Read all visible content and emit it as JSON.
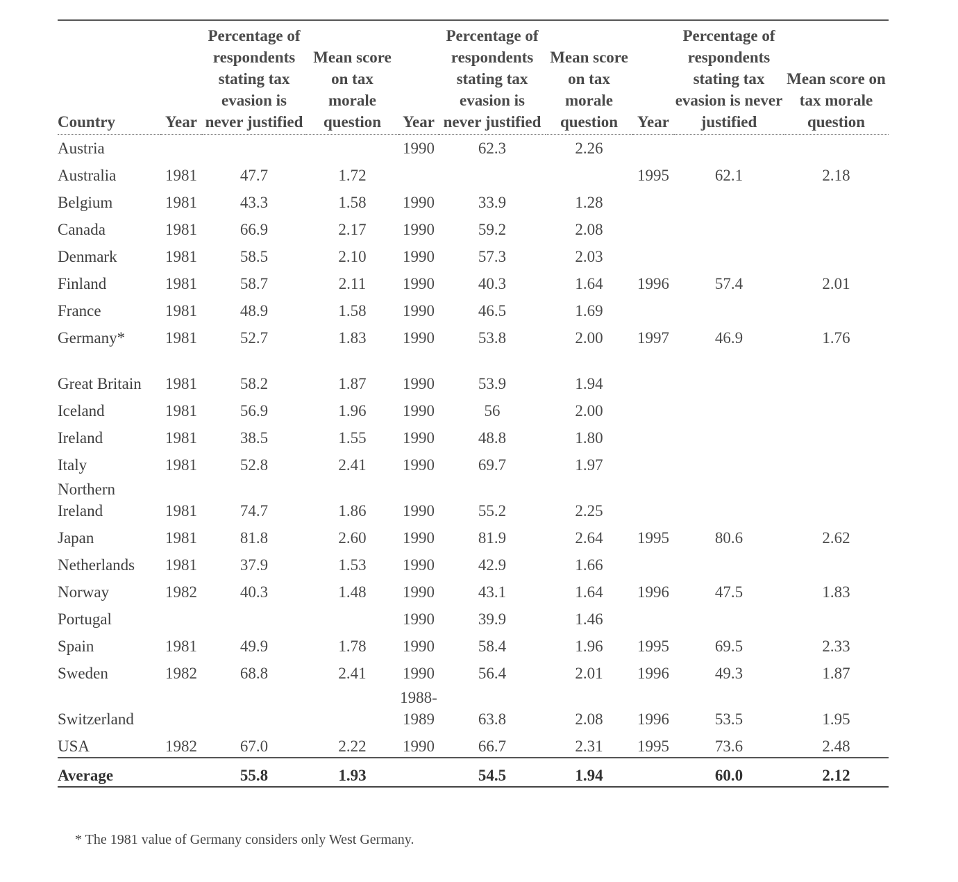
{
  "headers": {
    "country": "Country",
    "year": "Year",
    "pct": "Percentage of respondents stating tax evasion is never justified",
    "mean": "Mean score on tax morale question"
  },
  "rows": [
    {
      "country": "Austria",
      "y1": "",
      "p1": "",
      "m1": "",
      "y2": "1990",
      "p2": "62.3",
      "m2": "2.26",
      "y3": "",
      "p3": "",
      "m3": ""
    },
    {
      "country": "Australia",
      "y1": "1981",
      "p1": "47.7",
      "m1": "1.72",
      "y2": "",
      "p2": "",
      "m2": "",
      "y3": "1995",
      "p3": "62.1",
      "m3": "2.18"
    },
    {
      "country": "Belgium",
      "y1": "1981",
      "p1": "43.3",
      "m1": "1.58",
      "y2": "1990",
      "p2": "33.9",
      "m2": "1.28",
      "y3": "",
      "p3": "",
      "m3": ""
    },
    {
      "country": "Canada",
      "y1": "1981",
      "p1": "66.9",
      "m1": "2.17",
      "y2": "1990",
      "p2": "59.2",
      "m2": "2.08",
      "y3": "",
      "p3": "",
      "m3": ""
    },
    {
      "country": "Denmark",
      "y1": "1981",
      "p1": "58.5",
      "m1": "2.10",
      "y2": "1990",
      "p2": "57.3",
      "m2": "2.03",
      "y3": "",
      "p3": "",
      "m3": ""
    },
    {
      "country": "Finland",
      "y1": "1981",
      "p1": "58.7",
      "m1": "2.11",
      "y2": "1990",
      "p2": "40.3",
      "m2": "1.64",
      "y3": "1996",
      "p3": "57.4",
      "m3": "2.01"
    },
    {
      "country": "France",
      "y1": "1981",
      "p1": "48.9",
      "m1": "1.58",
      "y2": "1990",
      "p2": "46.5",
      "m2": "1.69",
      "y3": "",
      "p3": "",
      "m3": ""
    },
    {
      "country": "Germany*",
      "y1": "1981",
      "p1": "52.7",
      "m1": "1.83",
      "y2": "1990",
      "p2": "53.8",
      "m2": "2.00",
      "y3": "1997",
      "p3": "46.9",
      "m3": "1.76"
    },
    {
      "country": "Great Britain",
      "y1": "1981",
      "p1": "58.2",
      "m1": "1.87",
      "y2": "1990",
      "p2": "53.9",
      "m2": "1.94",
      "y3": "",
      "p3": "",
      "m3": ""
    },
    {
      "country": "Iceland",
      "y1": "1981",
      "p1": "56.9",
      "m1": "1.96",
      "y2": "1990",
      "p2": "56",
      "m2": "2.00",
      "y3": "",
      "p3": "",
      "m3": ""
    },
    {
      "country": "Ireland",
      "y1": "1981",
      "p1": "38.5",
      "m1": "1.55",
      "y2": "1990",
      "p2": "48.8",
      "m2": "1.80",
      "y3": "",
      "p3": "",
      "m3": ""
    },
    {
      "country": "Italy",
      "y1": "1981",
      "p1": "52.8",
      "m1": "2.41",
      "y2": "1990",
      "p2": "69.7",
      "m2": "1.97",
      "y3": "",
      "p3": "",
      "m3": ""
    },
    {
      "country": "Northern Ireland",
      "y1": "1981",
      "p1": "74.7",
      "m1": "1.86",
      "y2": "1990",
      "p2": "55.2",
      "m2": "2.25",
      "y3": "",
      "p3": "",
      "m3": ""
    },
    {
      "country": "Japan",
      "y1": "1981",
      "p1": "81.8",
      "m1": "2.60",
      "y2": "1990",
      "p2": "81.9",
      "m2": "2.64",
      "y3": "1995",
      "p3": "80.6",
      "m3": "2.62"
    },
    {
      "country": "Netherlands",
      "y1": "1981",
      "p1": "37.9",
      "m1": "1.53",
      "y2": "1990",
      "p2": "42.9",
      "m2": "1.66",
      "y3": "",
      "p3": "",
      "m3": ""
    },
    {
      "country": "Norway",
      "y1": "1982",
      "p1": "40.3",
      "m1": "1.48",
      "y2": "1990",
      "p2": "43.1",
      "m2": "1.64",
      "y3": "1996",
      "p3": "47.5",
      "m3": "1.83"
    },
    {
      "country": "Portugal",
      "y1": "",
      "p1": "",
      "m1": "",
      "y2": "1990",
      "p2": "39.9",
      "m2": "1.46",
      "y3": "",
      "p3": "",
      "m3": ""
    },
    {
      "country": "Spain",
      "y1": "1981",
      "p1": "49.9",
      "m1": "1.78",
      "y2": "1990",
      "p2": "58.4",
      "m2": "1.96",
      "y3": "1995",
      "p3": "69.5",
      "m3": "2.33"
    },
    {
      "country": "Sweden",
      "y1": "1982",
      "p1": "68.8",
      "m1": "2.41",
      "y2": "1990",
      "p2": "56.4",
      "m2": "2.01",
      "y3": "1996",
      "p3": "49.3",
      "m3": "1.87"
    },
    {
      "country": "Switzerland",
      "y1": "",
      "p1": "",
      "m1": "",
      "y2": "1988-1989",
      "p2": "63.8",
      "m2": "2.08",
      "y3": "1996",
      "p3": "53.5",
      "m3": "1.95"
    },
    {
      "country": "USA",
      "y1": "1982",
      "p1": "67.0",
      "m1": "2.22",
      "y2": "1990",
      "p2": "66.7",
      "m2": "2.31",
      "y3": "1995",
      "p3": "73.6",
      "m3": "2.48"
    }
  ],
  "average": {
    "label": "Average",
    "p1": "55.8",
    "m1": "1.93",
    "p2": "54.5",
    "m2": "1.94",
    "p3": "60.0",
    "m3": "2.12"
  },
  "footnote": "* The 1981 value of Germany considers only West Germany."
}
